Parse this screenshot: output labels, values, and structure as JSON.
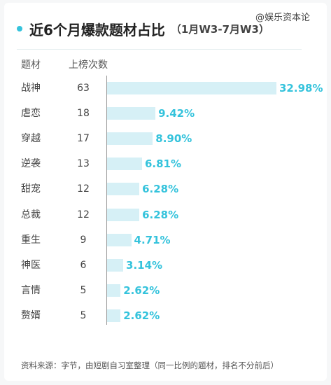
{
  "title": "近6个月爆款题材占比",
  "subtitle": "（1月W3-7月W3）",
  "watermark": "@娱乐资本论",
  "source": "资料来源：字节，由短剧自习室整理（同一比例的题材，排名不分前后）",
  "accent_color": "#35c3dc",
  "bar_color": "#d6f0f6",
  "chart_data": {
    "type": "bar",
    "orientation": "horizontal",
    "headers": {
      "category": "题材",
      "count": "上榜次数"
    },
    "categories": [
      "战神",
      "虐恋",
      "穿越",
      "逆袭",
      "甜宠",
      "总裁",
      "重生",
      "神医",
      "言情",
      "赘婿"
    ],
    "counts": [
      63,
      18,
      17,
      13,
      12,
      12,
      9,
      6,
      5,
      5
    ],
    "labels": [
      "32.98%",
      "9.42%",
      "8.90%",
      "6.81%",
      "6.28%",
      "6.28%",
      "4.71%",
      "3.14%",
      "2.62%",
      "2.62%"
    ],
    "values": [
      32.98,
      9.42,
      8.9,
      6.81,
      6.28,
      6.28,
      4.71,
      3.14,
      2.62,
      2.62
    ]
  }
}
